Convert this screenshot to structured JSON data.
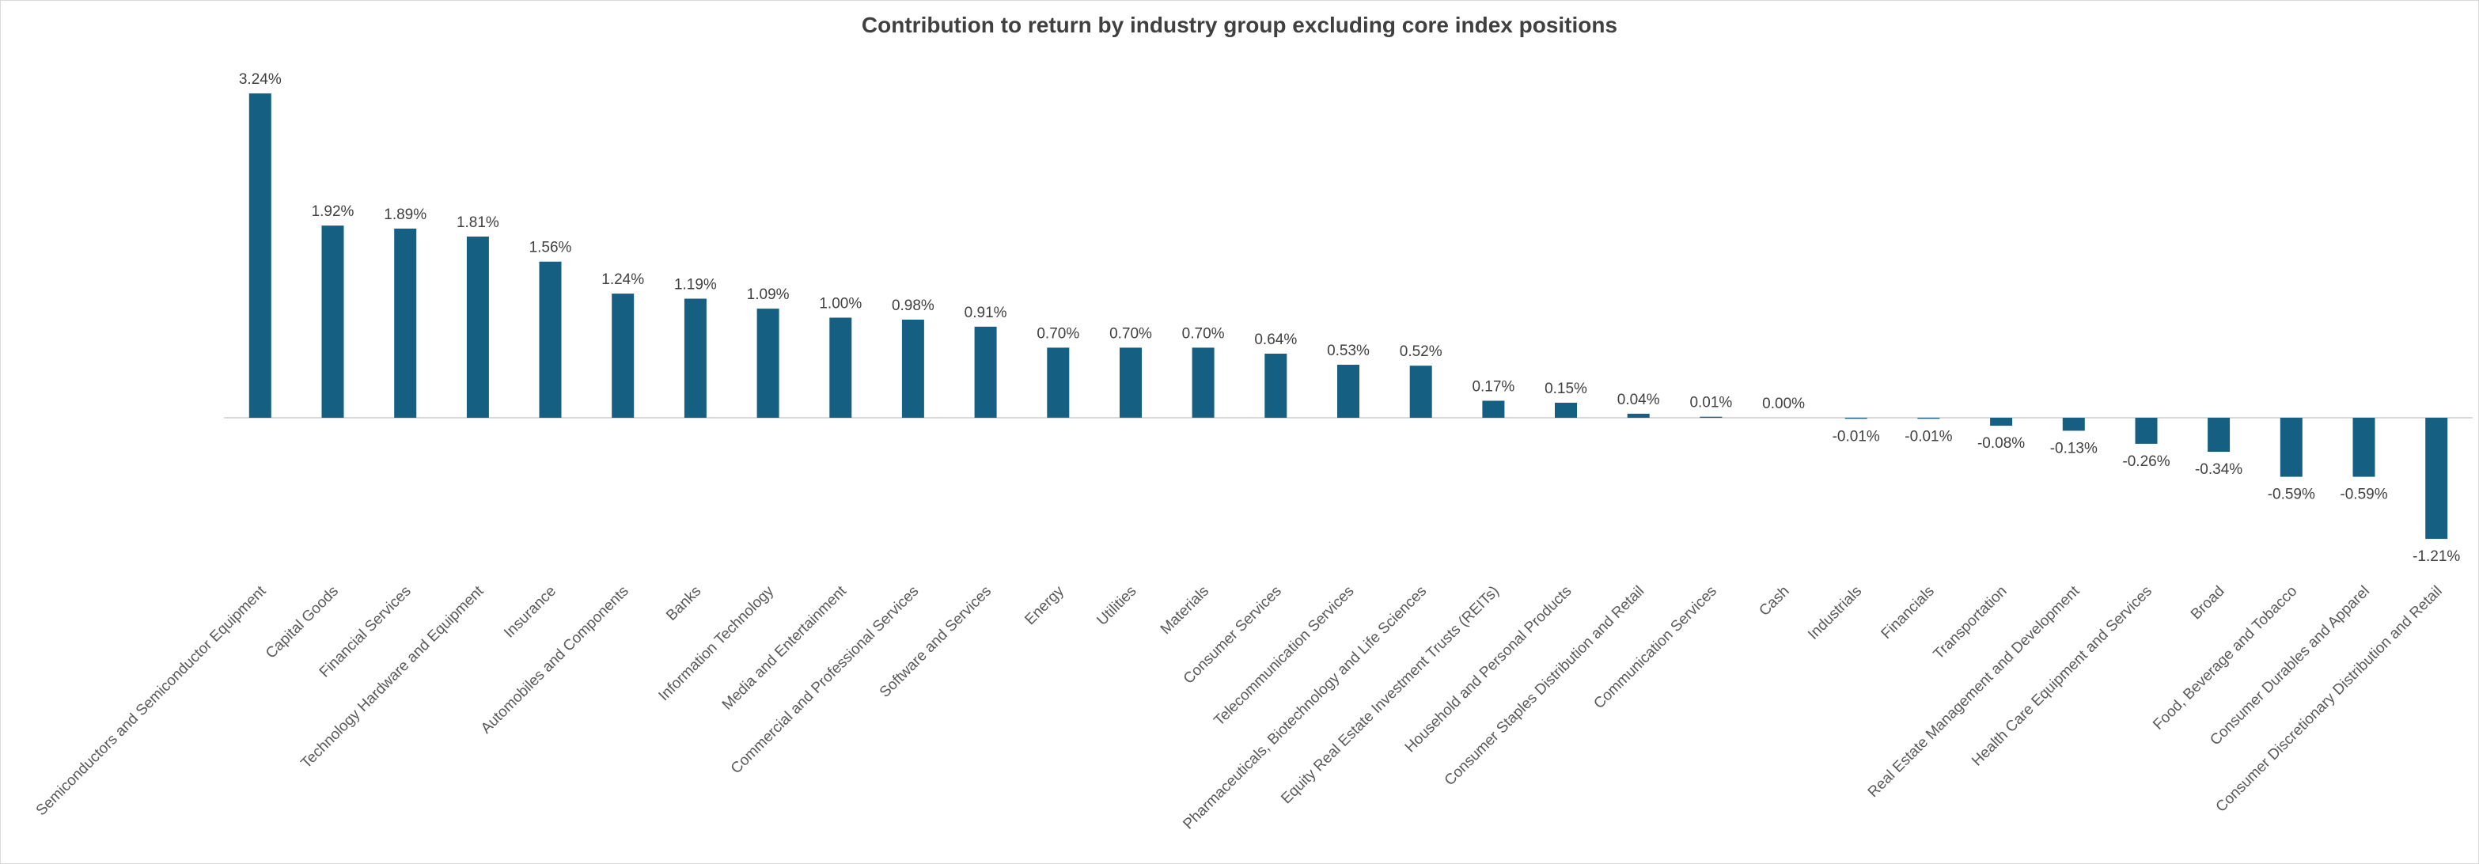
{
  "chart_data": {
    "type": "bar",
    "title": "Contribution to return by industry group excluding core index positions",
    "xlabel": "",
    "ylabel": "",
    "unit": "%",
    "ylim": [
      -1.4,
      3.5
    ],
    "grid": false,
    "legend": "none",
    "bar_color": "#156082",
    "categories": [
      "Semiconductors and Semiconductor Equipment",
      "Capital Goods",
      "Financial Services",
      "Technology Hardware and Equipment",
      "Insurance",
      "Automobiles and Components",
      "Banks",
      "Information Technology",
      "Media and Entertainment",
      "Commercial and Professional Services",
      "Software and Services",
      "Energy",
      "Utilities",
      "Materials",
      "Consumer Services",
      "Telecommunication Services",
      "Pharmaceuticals, Biotechnology and Life Sciences",
      "Equity Real Estate Investment Trusts (REITs)",
      "Household and Personal Products",
      "Consumer Staples Distribution and Retail",
      "Communication Services",
      "Cash",
      "Industrials",
      "Financials",
      "Transportation",
      "Real Estate Management and Development",
      "Health Care Equipment and Services",
      "Broad",
      "Food, Beverage and Tobacco",
      "Consumer Durables and Apparel",
      "Consumer Discretionary Distribution and Retail"
    ],
    "values": [
      3.24,
      1.92,
      1.89,
      1.81,
      1.56,
      1.24,
      1.19,
      1.09,
      1.0,
      0.98,
      0.91,
      0.7,
      0.7,
      0.7,
      0.64,
      0.53,
      0.52,
      0.17,
      0.15,
      0.04,
      0.01,
      0.0,
      -0.01,
      -0.01,
      -0.08,
      -0.13,
      -0.26,
      -0.34,
      -0.59,
      -0.59,
      -1.21
    ],
    "data_labels": [
      "3.24%",
      "1.92%",
      "1.89%",
      "1.81%",
      "1.56%",
      "1.24%",
      "1.19%",
      "1.09%",
      "1.00%",
      "0.98%",
      "0.91%",
      "0.70%",
      "0.70%",
      "0.70%",
      "0.64%",
      "0.53%",
      "0.52%",
      "0.17%",
      "0.15%",
      "0.04%",
      "0.01%",
      "0.00%",
      "-0.01%",
      "-0.01%",
      "-0.08%",
      "-0.13%",
      "-0.26%",
      "-0.34%",
      "-0.59%",
      "-0.59%",
      "-1.21%"
    ]
  }
}
